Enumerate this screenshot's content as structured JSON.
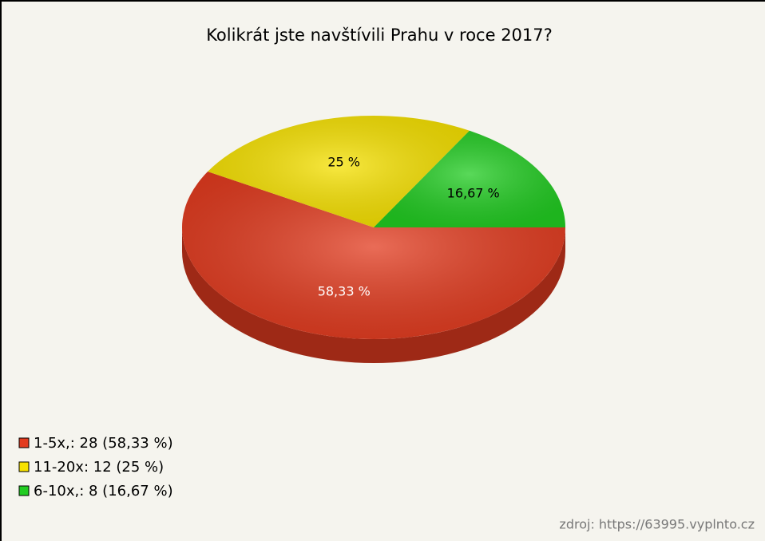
{
  "chart_data": {
    "type": "pie",
    "title": "Kolikrát jste navštívili Prahu v roce 2017?",
    "categories": [
      "1-5x,: 28 (58,33 %)",
      "11-20x: 12 (25 %)",
      "6-10x,: 8 (16,67 %)"
    ],
    "values": [
      58.33,
      25,
      16.67
    ],
    "value_labels": [
      "58,33 %",
      "25 %",
      "16,67 %"
    ],
    "colors": [
      "#e23b1f",
      "#f6e100",
      "#22cc22"
    ],
    "legend": "bottom-left",
    "source": "zdroj: https://63995.vyplnto.cz"
  }
}
